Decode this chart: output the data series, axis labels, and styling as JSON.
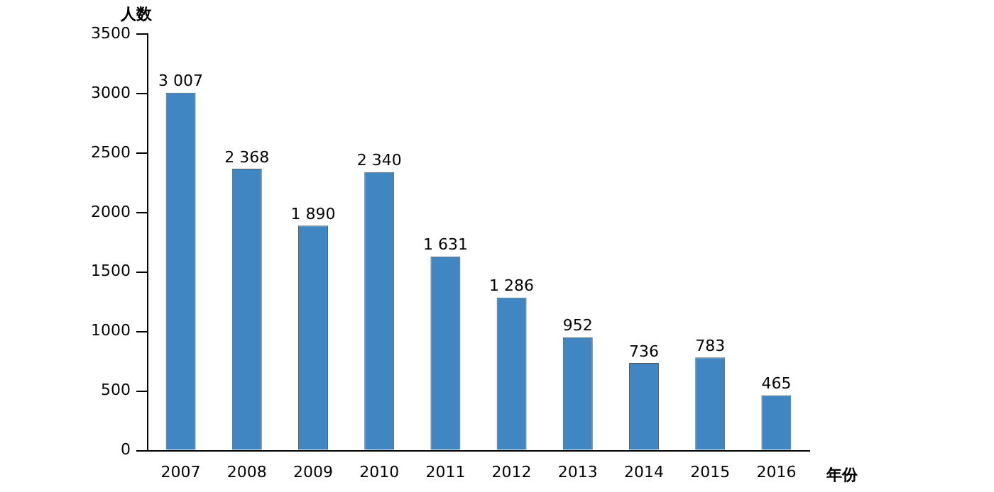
{
  "chart_data": {
    "type": "bar",
    "ylabel": "人数",
    "xlabel": "年份",
    "categories": [
      "2007",
      "2008",
      "2009",
      "2010",
      "2011",
      "2012",
      "2013",
      "2014",
      "2015",
      "2016"
    ],
    "values": [
      3007,
      2368,
      1890,
      2340,
      1631,
      1286,
      952,
      736,
      783,
      465
    ],
    "value_labels": [
      "3 007",
      "2 368",
      "1 890",
      "2 340",
      "1 631",
      "1 286",
      "952",
      "736",
      "783",
      "465"
    ],
    "color": "#3f86c2",
    "ylim": [
      0,
      3500
    ],
    "yticks": [
      0,
      500,
      1000,
      1500,
      2000,
      2500,
      3000,
      3500
    ],
    "grid": false
  }
}
